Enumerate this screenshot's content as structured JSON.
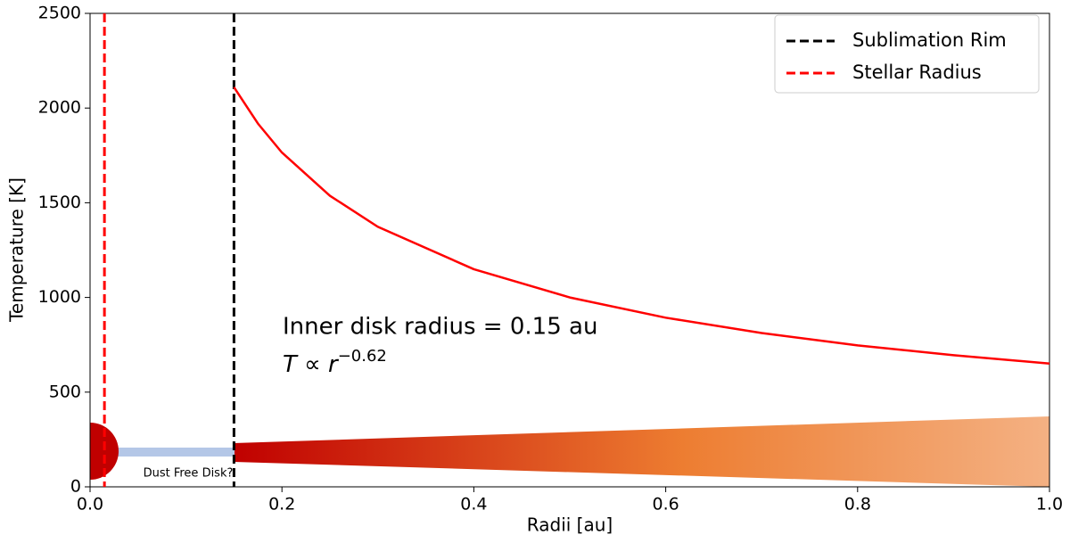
{
  "chart_data": {
    "type": "line",
    "xlabel": "Radii [au]",
    "ylabel": "Temperature [K]",
    "xlim": [
      0,
      1.0
    ],
    "ylim": [
      0,
      2500
    ],
    "xticks": [
      {
        "value": 0,
        "label": "0.0"
      },
      0.2,
      0.4,
      0.6,
      0.8,
      {
        "value": 1,
        "label": "1.0"
      }
    ],
    "yticks": [
      0,
      500,
      1000,
      1500,
      2000,
      2500
    ],
    "series": [
      {
        "color": "#ff0000",
        "x": [
          0.15,
          0.175,
          0.2,
          0.25,
          0.3,
          0.4,
          0.5,
          0.6,
          0.7,
          0.8,
          0.9,
          1.0
        ],
        "values": [
          2110,
          1918,
          1765,
          1537,
          1373,
          1149,
          1000,
          893,
          812,
          747,
          695,
          651
        ]
      }
    ],
    "vlines": [
      {
        "name": "Sublimation Rim",
        "x": 0.15,
        "color": "#000000"
      },
      {
        "name": "Stellar Radius",
        "x": 0.015,
        "color": "#ff0000"
      }
    ],
    "legend": "upper right",
    "annotations": {
      "disk_label": "Dust Free Disk?",
      "inner_radius": "Inner disk radius = 0.15 au",
      "law": "T ∝ r",
      "law_exponent": "−0.62"
    }
  }
}
